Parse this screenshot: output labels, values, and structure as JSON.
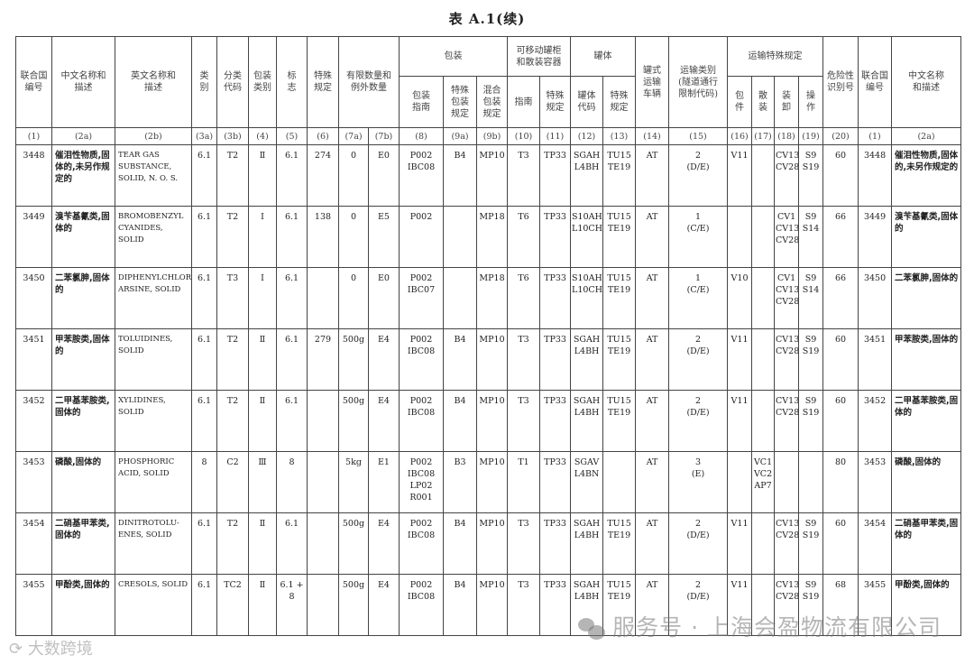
{
  "title": "表 A.1(续)",
  "header": {
    "row1": [
      {
        "label": "联合国\n编号",
        "rowspan": 2,
        "colspan": 1
      },
      {
        "label": "中文名称和\n描述",
        "rowspan": 2,
        "colspan": 1
      },
      {
        "label": "英文名称和\n描述",
        "rowspan": 2,
        "colspan": 1
      },
      {
        "label": "类\n别",
        "rowspan": 2,
        "colspan": 1
      },
      {
        "label": "分类\n代码",
        "rowspan": 2,
        "colspan": 1
      },
      {
        "label": "包装\n类别",
        "rowspan": 2,
        "colspan": 1
      },
      {
        "label": "标\n志",
        "rowspan": 2,
        "colspan": 1
      },
      {
        "label": "特殊\n规定",
        "rowspan": 2,
        "colspan": 1
      },
      {
        "label": "有限数量和\n例外数量",
        "rowspan": 2,
        "colspan": 2
      },
      {
        "label": "包装",
        "rowspan": 1,
        "colspan": 3
      },
      {
        "label": "可移动罐柜\n和散装容器",
        "rowspan": 1,
        "colspan": 2
      },
      {
        "label": "罐体",
        "rowspan": 1,
        "colspan": 2
      },
      {
        "label": "罐式\n运输\n车辆",
        "rowspan": 2,
        "colspan": 1
      },
      {
        "label": "运输类别\n(隧道通行\n限制代码)",
        "rowspan": 2,
        "colspan": 1
      },
      {
        "label": "运输特殊规定",
        "rowspan": 1,
        "colspan": 4
      },
      {
        "label": "危险性\n识别号",
        "rowspan": 2,
        "colspan": 1
      },
      {
        "label": "联合国\n编号",
        "rowspan": 2,
        "colspan": 1
      },
      {
        "label": "中文名称\n和描述",
        "rowspan": 2,
        "colspan": 1
      }
    ],
    "row2": [
      "包装\n指南",
      "特殊\n包装\n规定",
      "混合\n包装\n规定",
      "指南",
      "特殊\n规定",
      "罐体\n代码",
      "特殊\n规定",
      "包\n件",
      "散\n装",
      "装\n卸",
      "操\n作"
    ],
    "row3": [
      "(1)",
      "(2a)",
      "(2b)",
      "(3a)",
      "(3b)",
      "(4)",
      "(5)",
      "(6)",
      "(7a)",
      "(7b)",
      "(8)",
      "(9a)",
      "(9b)",
      "(10)",
      "(11)",
      "(12)",
      "(13)",
      "(14)",
      "(15)",
      "(16)",
      "(17)",
      "(18)",
      "(19)",
      "(20)",
      "(1)",
      "(2a)"
    ]
  },
  "rows": [
    [
      "3448",
      "催泪性物质,固体的,未另作规定的",
      "TEAR GAS SUBSTANCE, SOLID, N. O. S.",
      "6.1",
      "T2",
      "Ⅱ",
      "6.1",
      "274",
      "0",
      "E0",
      "P002\nIBC08",
      "B4",
      "MP10",
      "T3",
      "TP33",
      "SGAH\nL4BH",
      "TU15\nTE19",
      "AT",
      "2\n(D/E)",
      "V11",
      "",
      "CV13\nCV28",
      "S9\nS19",
      "60",
      "3448",
      "催泪性物质,固体的,未另作规定的"
    ],
    [
      "3449",
      "溴苄基氰类,固体的",
      "BROMOBENZYL CYANIDES, SOLID",
      "6.1",
      "T2",
      "Ⅰ",
      "6.1",
      "138",
      "0",
      "E5",
      "P002",
      "",
      "MP18",
      "T6",
      "TP33",
      "S10AH\nL10CH",
      "TU15\nTE19",
      "AT",
      "1\n(C/E)",
      "",
      "",
      "CV1\nCV13\nCV28",
      "S9\nS14",
      "66",
      "3449",
      "溴苄基氰类,固体的"
    ],
    [
      "3450",
      "二苯氯胂,固体的",
      "DIPHENYLCHLORO-ARSINE, SOLID",
      "6.1",
      "T3",
      "Ⅰ",
      "6.1",
      "",
      "0",
      "E0",
      "P002\nIBC07",
      "",
      "MP18",
      "T6",
      "TP33",
      "S10AH\nL10CH",
      "TU15\nTE19",
      "AT",
      "1\n(C/E)",
      "V10",
      "",
      "CV1\nCV13\nCV28",
      "S9\nS14",
      "66",
      "3450",
      "二苯氯胂,固体的"
    ],
    [
      "3451",
      "甲苯胺类,固体的",
      "TOLUIDINES, SOLID",
      "6.1",
      "T2",
      "Ⅱ",
      "6.1",
      "279",
      "500g",
      "E4",
      "P002\nIBC08",
      "B4",
      "MP10",
      "T3",
      "TP33",
      "SGAH\nL4BH",
      "TU15\nTE19",
      "AT",
      "2\n(D/E)",
      "V11",
      "",
      "CV13\nCV28",
      "S9\nS19",
      "60",
      "3451",
      "甲苯胺类,固体的"
    ],
    [
      "3452",
      "二甲基苯胺类,固体的",
      "XYLIDINES, SOLID",
      "6.1",
      "T2",
      "Ⅱ",
      "6.1",
      "",
      "500g",
      "E4",
      "P002\nIBC08",
      "B4",
      "MP10",
      "T3",
      "TP33",
      "SGAH\nL4BH",
      "TU15\nTE19",
      "AT",
      "2\n(D/E)",
      "V11",
      "",
      "CV13\nCV28",
      "S9\nS19",
      "60",
      "3452",
      "二甲基苯胺类,固体的"
    ],
    [
      "3453",
      "磷酸,固体的",
      "PHOSPHORIC ACID, SOLID",
      "8",
      "C2",
      "Ⅲ",
      "8",
      "",
      "5kg",
      "E1",
      "P002\nIBC08\nLP02\nR001",
      "B3",
      "MP10",
      "T1",
      "TP33",
      "SGAV\nL4BN",
      "",
      "AT",
      "3\n(E)",
      "",
      "VC1\nVC2\nAP7",
      "",
      "",
      "80",
      "3453",
      "磷酸,固体的"
    ],
    [
      "3454",
      "二硝基甲苯类,固体的",
      "DINITROTOLU-ENES, SOLID",
      "6.1",
      "T2",
      "Ⅱ",
      "6.1",
      "",
      "500g",
      "E4",
      "P002\nIBC08",
      "B4",
      "MP10",
      "T3",
      "TP33",
      "SGAH\nL4BH",
      "TU15\nTE19",
      "AT",
      "2\n(D/E)",
      "V11",
      "",
      "CV13\nCV28",
      "S9\nS19",
      "60",
      "3454",
      "二硝基甲苯类,固体的"
    ],
    [
      "3455",
      "甲酚类,固体的",
      "CRESOLS, SOLID",
      "6.1",
      "TC2",
      "Ⅱ",
      "6.1 +\n8",
      "",
      "500g",
      "E4",
      "P002\nIBC08",
      "B4",
      "MP10",
      "T3",
      "TP33",
      "SGAH\nL4BH",
      "TU15\nTE19",
      "AT",
      "2\n(D/E)",
      "V11",
      "",
      "CV13\nCV28",
      "S9\nS19",
      "68",
      "3455",
      "甲酚类,固体的"
    ]
  ],
  "watermark": {
    "wechat_text": "服务号 · 上海会盈物流有限公司",
    "brand_text": "大数跨境",
    "icon": "wechat-icon"
  }
}
